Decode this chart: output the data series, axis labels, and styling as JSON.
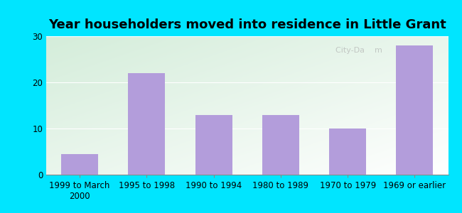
{
  "categories": [
    "1999 to March\n2000",
    "1995 to 1998",
    "1990 to 1994",
    "1980 to 1989",
    "1970 to 1979",
    "1969 or earlier"
  ],
  "values": [
    4.5,
    22,
    13,
    13,
    10,
    28
  ],
  "bar_color": "#b39ddb",
  "title": "Year householders moved into residence in Little Grant",
  "ylim": [
    0,
    30
  ],
  "yticks": [
    0,
    10,
    20,
    30
  ],
  "background_color": "#00e5ff",
  "gradient_topleft": "#d4edda",
  "gradient_bottomright": "#ffffff",
  "title_fontsize": 13,
  "tick_fontsize": 8.5,
  "watermark": "City-Da    m"
}
